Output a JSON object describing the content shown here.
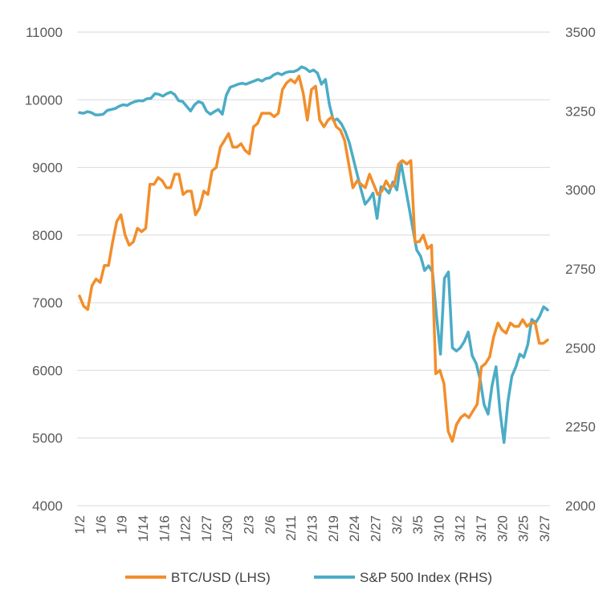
{
  "chart_data": {
    "type": "line",
    "title": "",
    "grid": true,
    "legend_position": "bottom",
    "x_tick_labels": [
      "1/2",
      "1/6",
      "1/9",
      "1/14",
      "1/16",
      "1/22",
      "1/27",
      "1/30",
      "2/3",
      "2/6",
      "2/11",
      "2/13",
      "2/19",
      "2/24",
      "2/27",
      "3/2",
      "3/5",
      "3/10",
      "3/12",
      "3/17",
      "3/20",
      "3/25",
      "3/27"
    ],
    "y_left": {
      "ticks": [
        4000,
        5000,
        6000,
        7000,
        8000,
        9000,
        10000,
        11000
      ],
      "ylim": [
        4000,
        11000
      ]
    },
    "y_right": {
      "ticks": [
        2000,
        2250,
        2500,
        2750,
        3000,
        3250,
        3500
      ],
      "ylim": [
        2000,
        3500
      ]
    },
    "series": [
      {
        "name": "BTC/USD (LHS)",
        "axis": "left",
        "color": "#F28E2B",
        "values": [
          7100,
          6950,
          6900,
          7250,
          7350,
          7300,
          7550,
          7550,
          7900,
          8200,
          8300,
          8000,
          7850,
          7900,
          8100,
          8050,
          8100,
          8750,
          8750,
          8850,
          8800,
          8700,
          8700,
          8900,
          8900,
          8600,
          8650,
          8650,
          8300,
          8400,
          8650,
          8600,
          8950,
          9000,
          9300,
          9400,
          9500,
          9300,
          9300,
          9350,
          9250,
          9200,
          9600,
          9650,
          9800,
          9800,
          9800,
          9750,
          9800,
          10150,
          10250,
          10300,
          10250,
          10350,
          10100,
          9700,
          10150,
          10200,
          9700,
          9600,
          9700,
          9750,
          9600,
          9550,
          9400,
          9050,
          8700,
          8800,
          8750,
          8700,
          8900,
          8750,
          8600,
          8650,
          8800,
          8700,
          8750,
          9050,
          9100,
          9050,
          9100,
          7900,
          7900,
          8000,
          7800,
          7850,
          5950,
          6000,
          5800,
          5100,
          4950,
          5200,
          5300,
          5350,
          5300,
          5400,
          5500,
          6050,
          6100,
          6200,
          6500,
          6700,
          6600,
          6550,
          6700,
          6650,
          6650,
          6750,
          6650,
          6700,
          6700,
          6400,
          6400,
          6450
        ]
      },
      {
        "name": "S&P 500 Index (RHS)",
        "axis": "right",
        "color": "#4BACC6",
        "values": [
          3245,
          3243,
          3248,
          3245,
          3238,
          3238,
          3240,
          3252,
          3255,
          3258,
          3265,
          3270,
          3268,
          3275,
          3280,
          3283,
          3282,
          3289,
          3290,
          3305,
          3303,
          3297,
          3305,
          3310,
          3302,
          3283,
          3280,
          3265,
          3250,
          3270,
          3280,
          3275,
          3250,
          3240,
          3248,
          3255,
          3240,
          3300,
          3325,
          3330,
          3335,
          3338,
          3335,
          3340,
          3345,
          3350,
          3345,
          3353,
          3355,
          3365,
          3370,
          3365,
          3372,
          3375,
          3375,
          3380,
          3390,
          3385,
          3375,
          3380,
          3370,
          3335,
          3350,
          3270,
          3220,
          3225,
          3210,
          3185,
          3150,
          3100,
          3050,
          3000,
          2955,
          2970,
          2990,
          2910,
          3010,
          3005,
          2990,
          3025,
          3000,
          3090,
          3020,
          2950,
          2880,
          2810,
          2790,
          2745,
          2760,
          2740,
          2600,
          2480,
          2720,
          2740,
          2500,
          2490,
          2500,
          2520,
          2550,
          2475,
          2450,
          2400,
          2320,
          2290,
          2380,
          2440,
          2300,
          2200,
          2330,
          2410,
          2440,
          2480,
          2470,
          2510,
          2590,
          2580,
          2600,
          2630,
          2620
        ]
      }
    ]
  }
}
